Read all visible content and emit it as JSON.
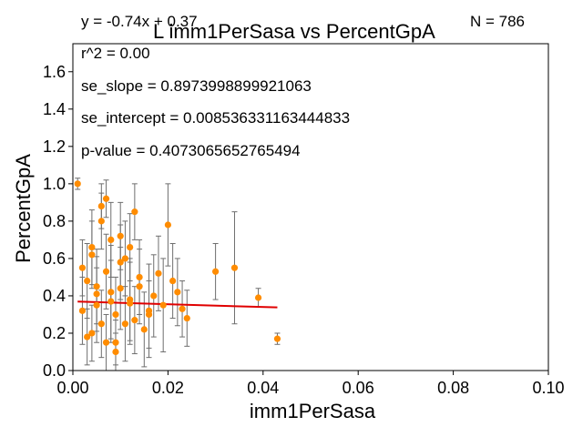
{
  "chart_data": {
    "type": "scatter",
    "title": "L imm1PerSasa vs PercentGpA",
    "xlabel": "imm1PerSasa",
    "ylabel": "PercentGpA",
    "xlim": [
      0.0,
      0.1
    ],
    "ylim": [
      0.0,
      1.75
    ],
    "xticks": [
      "0.00",
      "0.02",
      "0.04",
      "0.06",
      "0.08",
      "0.10"
    ],
    "yticks": [
      "0.0",
      "0.2",
      "0.4",
      "0.6",
      "0.8",
      "1.0",
      "1.2",
      "1.4",
      "1.6"
    ],
    "grid": false,
    "n_label": "N = 786",
    "stats": {
      "equation": "y = -0.74x + 0.37",
      "r2": "r^2 = 0.00",
      "se_slope": "se_slope = 0.8973998899921063",
      "se_intercept": "se_intercept = 0.008536331163444833",
      "p_value": "p-value = 0.4073065652765494"
    },
    "fit_line": {
      "x": [
        0.001,
        0.043
      ],
      "y": [
        0.369,
        0.338
      ]
    },
    "colors": {
      "points": "#ff8c00",
      "errorbars": "#6e6e6e",
      "fit": "#e00000"
    },
    "series": [
      {
        "x": [
          0.001,
          0.002,
          0.003,
          0.004,
          0.005,
          0.006,
          0.007,
          0.008,
          0.009,
          0.01,
          0.011,
          0.012,
          0.013,
          0.014,
          0.016,
          0.018,
          0.02,
          0.022,
          0.024,
          0.03,
          0.034,
          0.039,
          0.043,
          0.004,
          0.006,
          0.008,
          0.01,
          0.012,
          0.007,
          0.009,
          0.003,
          0.005,
          0.015,
          0.017,
          0.019,
          0.021,
          0.023,
          0.011,
          0.013,
          0.008,
          0.006,
          0.002,
          0.004,
          0.01,
          0.014,
          0.016,
          0.009,
          0.007,
          0.012,
          0.005
        ],
        "y": [
          1.0,
          0.55,
          0.48,
          0.62,
          0.35,
          0.88,
          0.92,
          0.42,
          0.3,
          0.72,
          0.25,
          0.38,
          0.85,
          0.45,
          0.32,
          0.52,
          0.78,
          0.42,
          0.28,
          0.53,
          0.55,
          0.39,
          0.17,
          0.2,
          0.25,
          0.7,
          0.58,
          0.66,
          0.15,
          0.1,
          0.18,
          0.45,
          0.22,
          0.4,
          0.35,
          0.48,
          0.33,
          0.6,
          0.27,
          0.37,
          0.8,
          0.32,
          0.66,
          0.44,
          0.5,
          0.3,
          0.15,
          0.53,
          0.36,
          0.41
        ],
        "err": [
          0.03,
          0.15,
          0.2,
          0.18,
          0.2,
          0.12,
          0.1,
          0.25,
          0.2,
          0.18,
          0.2,
          0.22,
          0.15,
          0.2,
          0.25,
          0.2,
          0.22,
          0.18,
          0.15,
          0.15,
          0.3,
          0.05,
          0.03,
          0.15,
          0.18,
          0.2,
          0.2,
          0.18,
          0.15,
          0.1,
          0.15,
          0.2,
          0.2,
          0.22,
          0.25,
          0.2,
          0.15,
          0.2,
          0.18,
          0.22,
          0.15,
          0.18,
          0.2,
          0.22,
          0.2,
          0.18,
          0.12,
          0.2,
          0.22,
          0.2
        ]
      }
    ]
  }
}
